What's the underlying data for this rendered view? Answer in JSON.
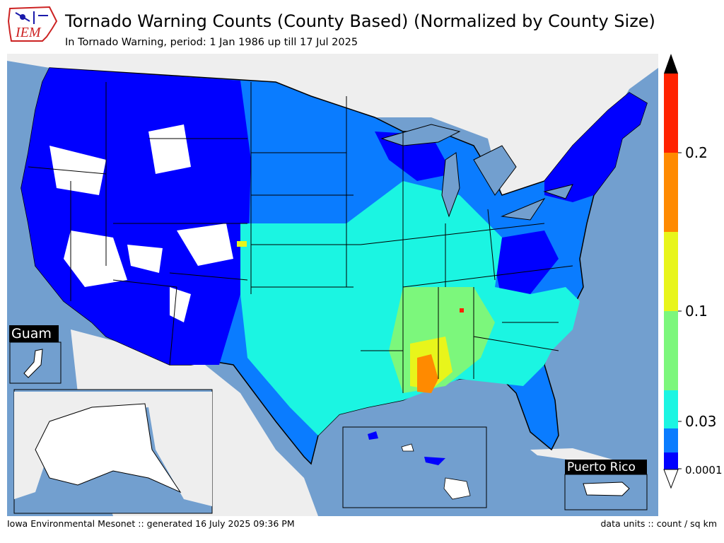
{
  "header": {
    "logo_text": "IEM",
    "title": "Tornado Warning Counts (County Based) (Normalized by County Size)",
    "subtitle": "In Tornado Warning, period: 1 Jan 1986 up till 17 Jul 2025"
  },
  "insets": {
    "guam": "Guam",
    "puerto_rico": "Puerto Rico"
  },
  "colorbar": {
    "tick_labels": [
      "0.0001",
      "0.03",
      "0.1",
      "0.2"
    ],
    "bins": [
      {
        "color": "#0000ff"
      },
      {
        "color": "#0a7cff"
      },
      {
        "color": "#1bf5e2"
      },
      {
        "color": "#7cf77c"
      },
      {
        "color": "#e8f51b"
      },
      {
        "color": "#ff8a00"
      },
      {
        "color": "#ff2200"
      }
    ],
    "over_color": "#000000",
    "under_color": "#ffffff"
  },
  "colors": {
    "ocean": "#729fcf",
    "land_outside": "#eeeeee",
    "no_data": "#ffffff"
  },
  "footer": {
    "left": "Iowa Environmental Mesonet :: generated 16 July 2025 09:36 PM",
    "right": "data units :: count / sq km"
  }
}
